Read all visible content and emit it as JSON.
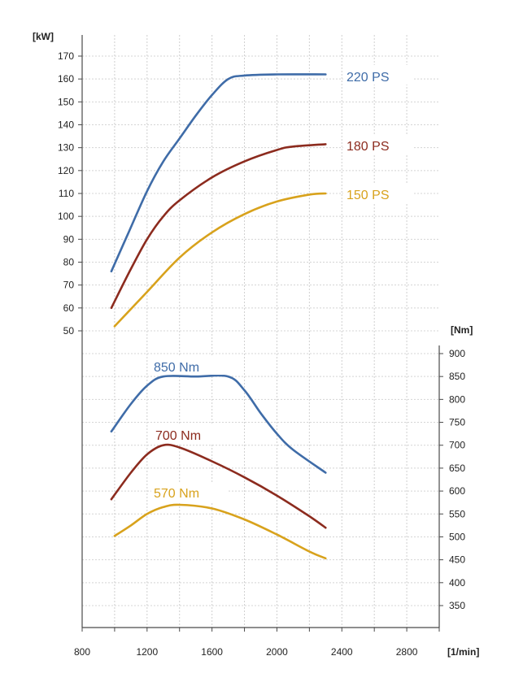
{
  "chart_data": {
    "type": "line",
    "x_axis": {
      "label": "[1/min]",
      "min": 800,
      "max": 3000,
      "ticks": [
        800,
        1200,
        1600,
        2000,
        2400,
        2800
      ],
      "minor_step": 200
    },
    "power_axis": {
      "label": "[kW]",
      "min": 50,
      "max": 170,
      "step": 10,
      "ticks": [
        50,
        60,
        70,
        80,
        90,
        100,
        110,
        120,
        130,
        140,
        150,
        160,
        170
      ]
    },
    "torque_axis": {
      "label": "[Nm]",
      "min": 350,
      "max": 900,
      "step": 50,
      "ticks": [
        350,
        400,
        450,
        500,
        550,
        600,
        650,
        700,
        750,
        800,
        850,
        900
      ]
    },
    "grid": true,
    "power_series": [
      {
        "name": "220 PS",
        "color": "#3f6ca8",
        "points": [
          [
            980,
            76
          ],
          [
            1080,
            92
          ],
          [
            1200,
            111
          ],
          [
            1300,
            124
          ],
          [
            1400,
            134
          ],
          [
            1500,
            144
          ],
          [
            1600,
            153
          ],
          [
            1700,
            160
          ],
          [
            1800,
            161.5
          ],
          [
            2000,
            162
          ],
          [
            2300,
            162
          ]
        ]
      },
      {
        "name": "180 PS",
        "color": "#8c2b1e",
        "points": [
          [
            980,
            60
          ],
          [
            1100,
            77
          ],
          [
            1200,
            90
          ],
          [
            1300,
            100
          ],
          [
            1400,
            107
          ],
          [
            1600,
            117
          ],
          [
            1800,
            124
          ],
          [
            2000,
            129
          ],
          [
            2100,
            130.5
          ],
          [
            2300,
            131.5
          ]
        ]
      },
      {
        "name": "150 PS",
        "color": "#d8a21c",
        "points": [
          [
            1000,
            52
          ],
          [
            1200,
            67
          ],
          [
            1400,
            82
          ],
          [
            1600,
            93
          ],
          [
            1800,
            101
          ],
          [
            2000,
            106.5
          ],
          [
            2200,
            109.5
          ],
          [
            2300,
            110
          ]
        ]
      }
    ],
    "torque_series": [
      {
        "name": "850 Nm",
        "color": "#3f6ca8",
        "points": [
          [
            980,
            730
          ],
          [
            1100,
            790
          ],
          [
            1200,
            830
          ],
          [
            1300,
            850
          ],
          [
            1500,
            850
          ],
          [
            1700,
            850
          ],
          [
            1800,
            820
          ],
          [
            1900,
            770
          ],
          [
            2000,
            725
          ],
          [
            2100,
            690
          ],
          [
            2300,
            640
          ]
        ]
      },
      {
        "name": "700 Nm",
        "color": "#8c2b1e",
        "points": [
          [
            980,
            582
          ],
          [
            1100,
            640
          ],
          [
            1200,
            680
          ],
          [
            1300,
            700
          ],
          [
            1400,
            695
          ],
          [
            1600,
            665
          ],
          [
            1800,
            630
          ],
          [
            2000,
            590
          ],
          [
            2200,
            545
          ],
          [
            2300,
            520
          ]
        ]
      },
      {
        "name": "570 Nm",
        "color": "#d8a21c",
        "points": [
          [
            1000,
            502
          ],
          [
            1100,
            525
          ],
          [
            1200,
            550
          ],
          [
            1300,
            565
          ],
          [
            1400,
            570
          ],
          [
            1600,
            562
          ],
          [
            1800,
            538
          ],
          [
            2000,
            505
          ],
          [
            2200,
            468
          ],
          [
            2300,
            453
          ]
        ]
      }
    ]
  }
}
